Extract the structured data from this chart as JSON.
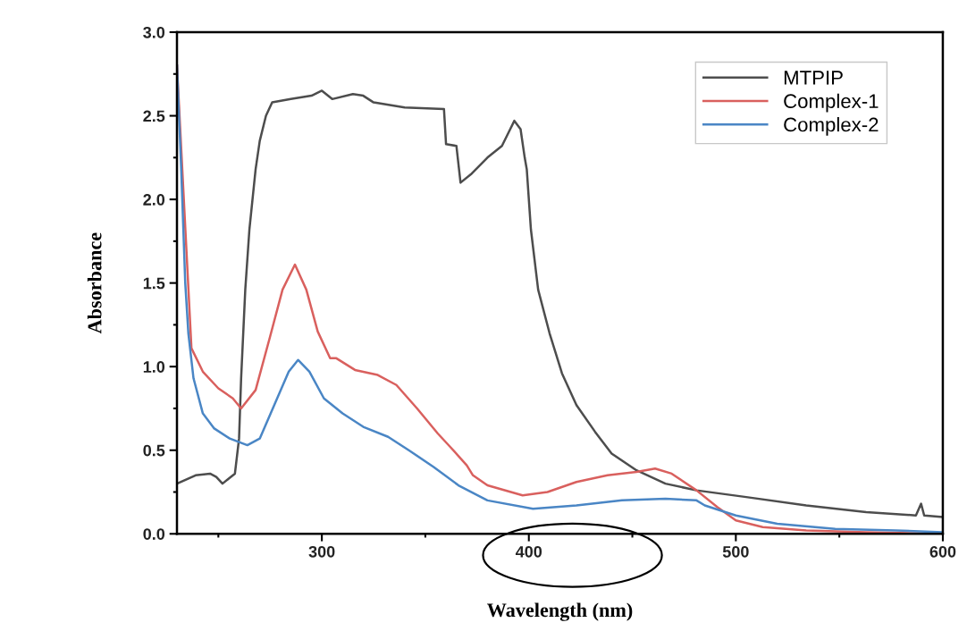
{
  "chart_data": {
    "type": "line",
    "xlabel": "Wavelength (nm)",
    "ylabel": "Absorbance",
    "xlim": [
      230,
      600
    ],
    "xticks": [
      300,
      400,
      500,
      600
    ],
    "ylim": [
      0,
      3.0
    ],
    "yticks": [
      {
        "value": 0,
        "label": "0.0"
      },
      {
        "value": 0.5,
        "label": "0.5"
      },
      {
        "value": 1.0,
        "label": "1.0"
      },
      {
        "value": 1.5,
        "label": "1.5"
      },
      {
        "value": 2.0,
        "label": "2.0"
      },
      {
        "value": 2.5,
        "label": "2.5"
      },
      {
        "value": 3.0,
        "label": "3.0"
      }
    ],
    "grid": false,
    "legend": "top right",
    "marker": "none",
    "line_style": "solid",
    "series": [
      {
        "name": "MTPIP",
        "color": "#4d4d4d",
        "x": [
          230,
          239,
          246,
          249,
          252,
          255,
          258,
          260,
          261,
          263,
          265,
          268,
          270,
          273,
          276,
          285,
          295,
          300,
          305,
          315,
          320,
          325,
          340,
          359,
          360,
          365,
          367,
          372,
          380,
          387,
          391,
          393,
          396,
          398,
          399,
          401,
          404.5,
          410,
          416,
          423,
          432,
          440,
          452,
          466,
          481,
          505,
          534,
          563,
          587,
          589.5,
          591,
          600
        ],
        "values": [
          0.3,
          0.35,
          0.36,
          0.34,
          0.3,
          0.33,
          0.36,
          0.57,
          0.93,
          1.46,
          1.82,
          2.18,
          2.35,
          2.5,
          2.58,
          2.6,
          2.62,
          2.65,
          2.6,
          2.63,
          2.62,
          2.58,
          2.55,
          2.54,
          2.33,
          2.32,
          2.1,
          2.15,
          2.25,
          2.32,
          2.42,
          2.47,
          2.42,
          2.25,
          2.18,
          1.82,
          1.46,
          1.2,
          0.96,
          0.77,
          0.61,
          0.48,
          0.38,
          0.3,
          0.26,
          0.22,
          0.17,
          0.13,
          0.11,
          0.18,
          0.11,
          0.1
        ]
      },
      {
        "name": "Complex-1",
        "color": "#d9605e",
        "x": [
          230,
          237,
          242.5,
          250,
          257,
          261,
          268,
          275,
          281,
          287,
          292.5,
          298,
          304,
          307,
          316,
          327,
          336,
          346,
          356,
          362,
          370,
          373,
          380,
          397,
          409,
          423,
          438,
          452,
          461,
          469,
          481,
          491,
          500,
          513,
          534,
          563,
          600
        ],
        "values": [
          2.8,
          1.11,
          0.97,
          0.87,
          0.81,
          0.75,
          0.86,
          1.18,
          1.46,
          1.61,
          1.46,
          1.21,
          1.05,
          1.05,
          0.98,
          0.95,
          0.89,
          0.75,
          0.6,
          0.52,
          0.41,
          0.35,
          0.29,
          0.23,
          0.25,
          0.31,
          0.35,
          0.37,
          0.39,
          0.36,
          0.26,
          0.16,
          0.08,
          0.04,
          0.02,
          0.01,
          0.0
        ]
      },
      {
        "name": "Complex-2",
        "color": "#4a86c5",
        "x": [
          230,
          232,
          234,
          235.5,
          238,
          242.5,
          248,
          255.5,
          264,
          270,
          277,
          284,
          288.5,
          294,
          301,
          310,
          320,
          332,
          342,
          354,
          366,
          380,
          402,
          423,
          445,
          466,
          481,
          485,
          500,
          520,
          548,
          577,
          600
        ],
        "values": [
          2.8,
          2.2,
          1.5,
          1.2,
          0.93,
          0.72,
          0.63,
          0.57,
          0.53,
          0.57,
          0.77,
          0.97,
          1.04,
          0.97,
          0.81,
          0.72,
          0.64,
          0.58,
          0.5,
          0.4,
          0.29,
          0.2,
          0.15,
          0.17,
          0.2,
          0.21,
          0.2,
          0.17,
          0.11,
          0.06,
          0.03,
          0.02,
          0.01
        ]
      }
    ]
  }
}
